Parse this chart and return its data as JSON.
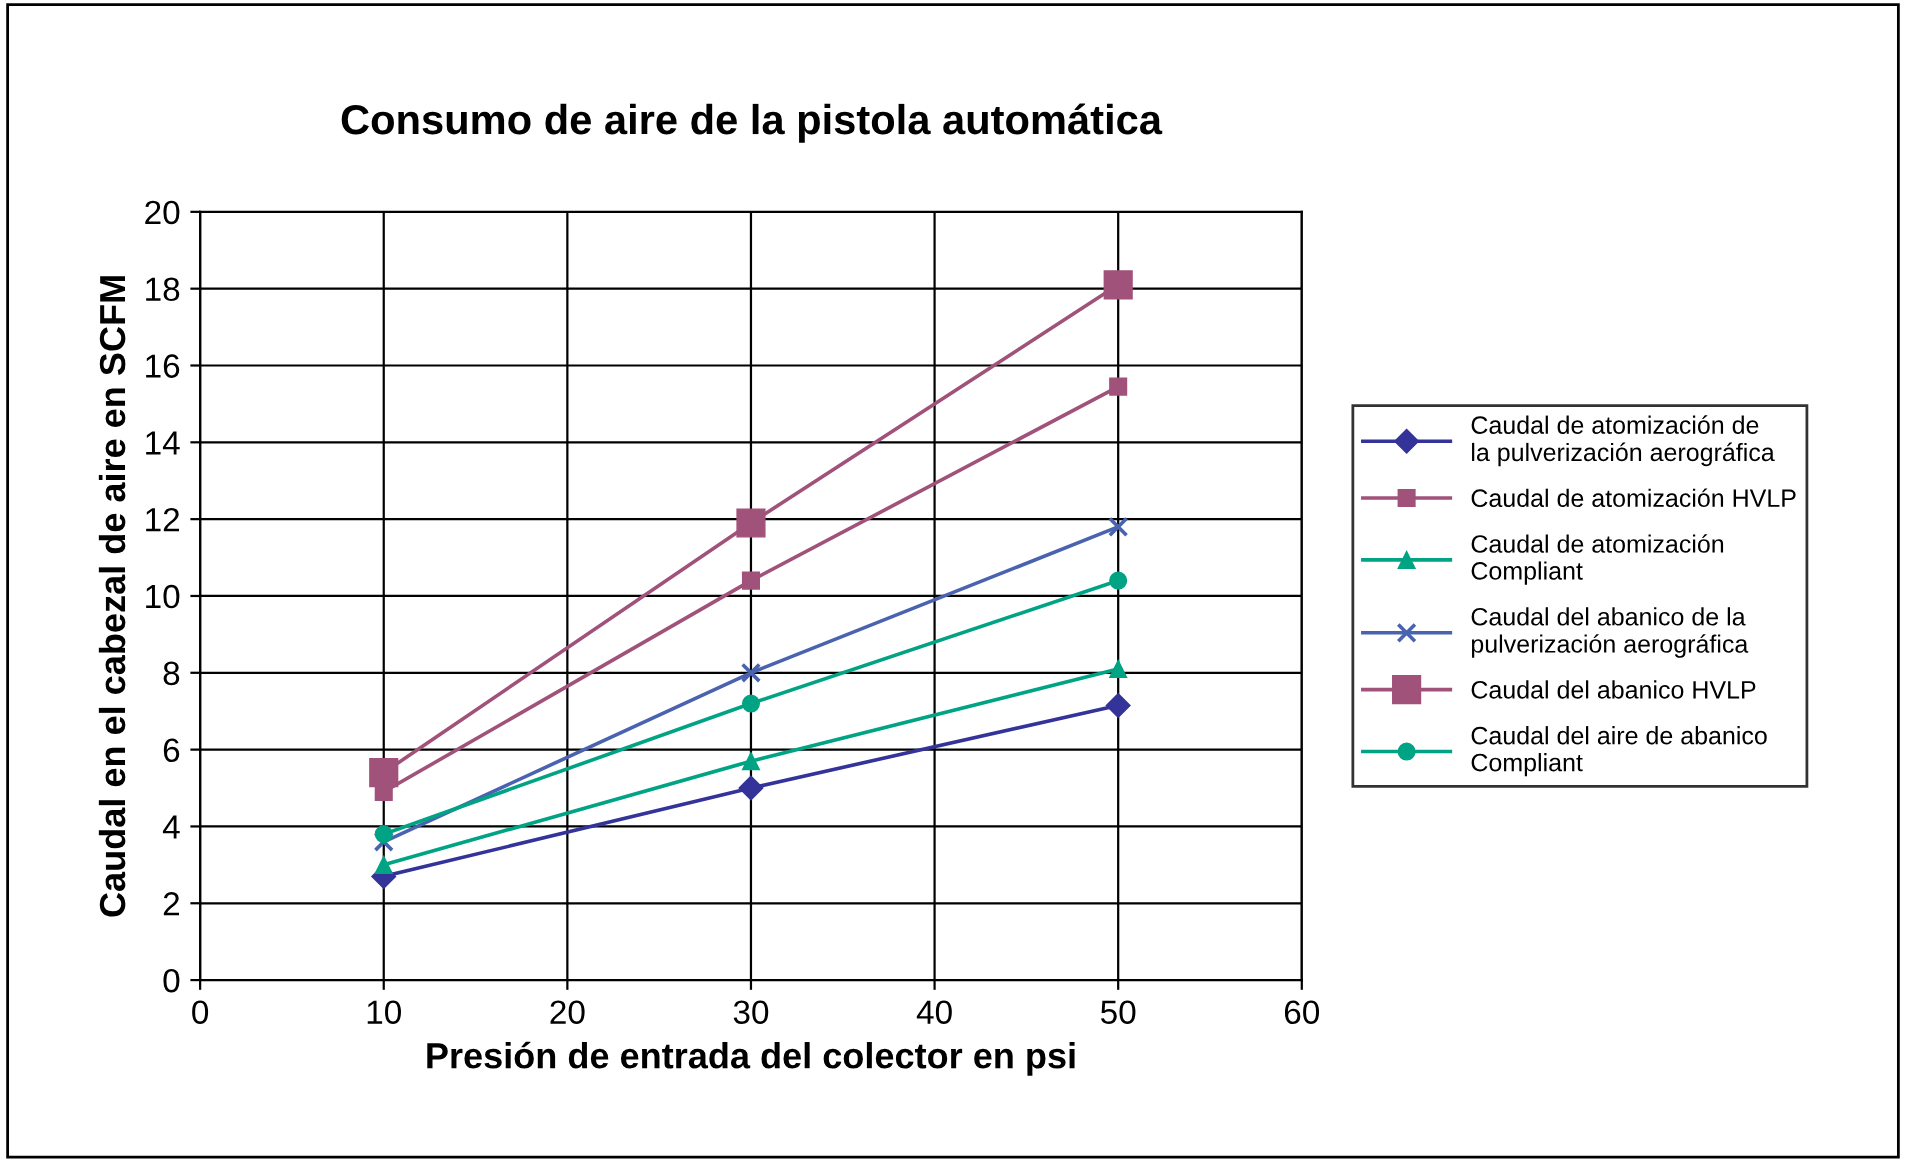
{
  "chart_data": {
    "type": "line",
    "title": "Consumo de aire de la pistola automática",
    "xlabel": "Presión de entrada del colector en psi",
    "ylabel": "Caudal en el cabezal de aire en SCFM",
    "x": [
      10,
      30,
      50
    ],
    "series": [
      {
        "name": "Caudal de atomización de\nla pulverización aerográfica",
        "color": "#333399",
        "marker": "diamond",
        "values": [
          2.7,
          5.0,
          7.15
        ]
      },
      {
        "name": "Caudal de atomización HVLP",
        "color": "#a0527a",
        "marker": "square",
        "values": [
          4.9,
          10.4,
          15.45
        ]
      },
      {
        "name": "Caudal de atomización\nCompliant",
        "color": "#00a383",
        "marker": "triangle",
        "values": [
          3.0,
          5.7,
          8.1
        ]
      },
      {
        "name": "Caudal del abanico de la\npulverización aerográfica",
        "color": "#4a63b0",
        "marker": "cross",
        "values": [
          3.6,
          8.0,
          11.8
        ]
      },
      {
        "name": "Caudal del abanico HVLP",
        "color": "#a0527a",
        "marker": "square",
        "values": [
          5.4,
          11.9,
          18.1
        ]
      },
      {
        "name": "Caudal del aire de abanico\nCompliant",
        "color": "#00a383",
        "marker": "circle",
        "values": [
          3.8,
          7.2,
          10.4
        ]
      }
    ],
    "xlim": [
      0,
      60
    ],
    "xticks": [
      0,
      10,
      20,
      30,
      40,
      50,
      60
    ],
    "ylim": [
      0,
      20
    ],
    "yticks": [
      0,
      2,
      4,
      6,
      8,
      10,
      12,
      14,
      16,
      18,
      20
    ],
    "grid": true,
    "legend": "right",
    "line_style": "solid"
  }
}
